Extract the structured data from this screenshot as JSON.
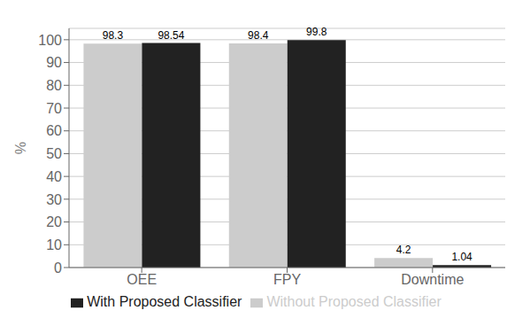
{
  "chart_data": {
    "type": "bar",
    "ylabel": "%",
    "categories": [
      "OEE",
      "FPY",
      "Downtime"
    ],
    "series": [
      {
        "name": "Without Proposed Classifier",
        "color": "#cccccc",
        "values": [
          98.3,
          98.4,
          4.2
        ]
      },
      {
        "name": "With Proposed Classifier",
        "color": "#222222",
        "values": [
          98.54,
          99.8,
          1.04
        ]
      }
    ],
    "ylim": [
      0,
      105
    ],
    "yticks": [
      0,
      10,
      20,
      30,
      40,
      50,
      60,
      70,
      80,
      90,
      100
    ],
    "grid": true,
    "legend": "bottom",
    "data_labels": true
  }
}
